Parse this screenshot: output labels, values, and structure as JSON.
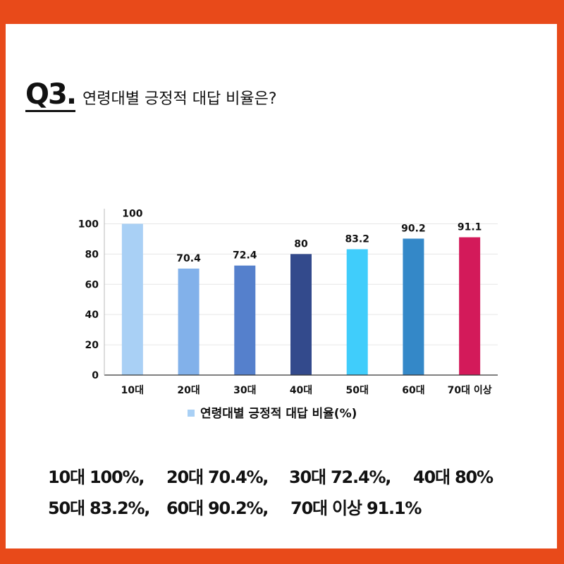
{
  "heading": {
    "number": "Q3.",
    "text": "연령대별 긍정적 대답 비율은?"
  },
  "chart_data": {
    "type": "bar",
    "categories": [
      "10대",
      "20대",
      "30대",
      "40대",
      "50대",
      "60대",
      "70대 이상"
    ],
    "series": [
      {
        "name": "연령대별 긍정적 대답 비율(%)",
        "values": [
          100,
          70.4,
          72.4,
          80,
          83.2,
          90.2,
          91.1
        ],
        "value_labels": [
          "100",
          "70.4",
          "72.4",
          "80",
          "83.2",
          "90.2",
          "91.1"
        ]
      }
    ],
    "bar_colors": [
      "#a9d0f5",
      "#82b1ea",
      "#5580cc",
      "#334a8c",
      "#40cdfb",
      "#3488c8",
      "#d31a5a"
    ],
    "ylim": [
      0,
      110
    ],
    "yticks": [
      "0",
      "20",
      "40",
      "60",
      "80",
      "100"
    ],
    "grid": true,
    "legend_position": "bottom",
    "legend_color": "#a9d0f5"
  },
  "summary": {
    "row1": [
      "10대 100%,",
      "20대 70.4%,",
      "30대 72.4%,",
      "40대 80%"
    ],
    "row2": [
      "50대 83.2%,",
      "60대 90.2%,",
      "70대 이상 91.1%"
    ]
  },
  "colors": {
    "frame": "#e84a1a",
    "text": "#111111"
  }
}
